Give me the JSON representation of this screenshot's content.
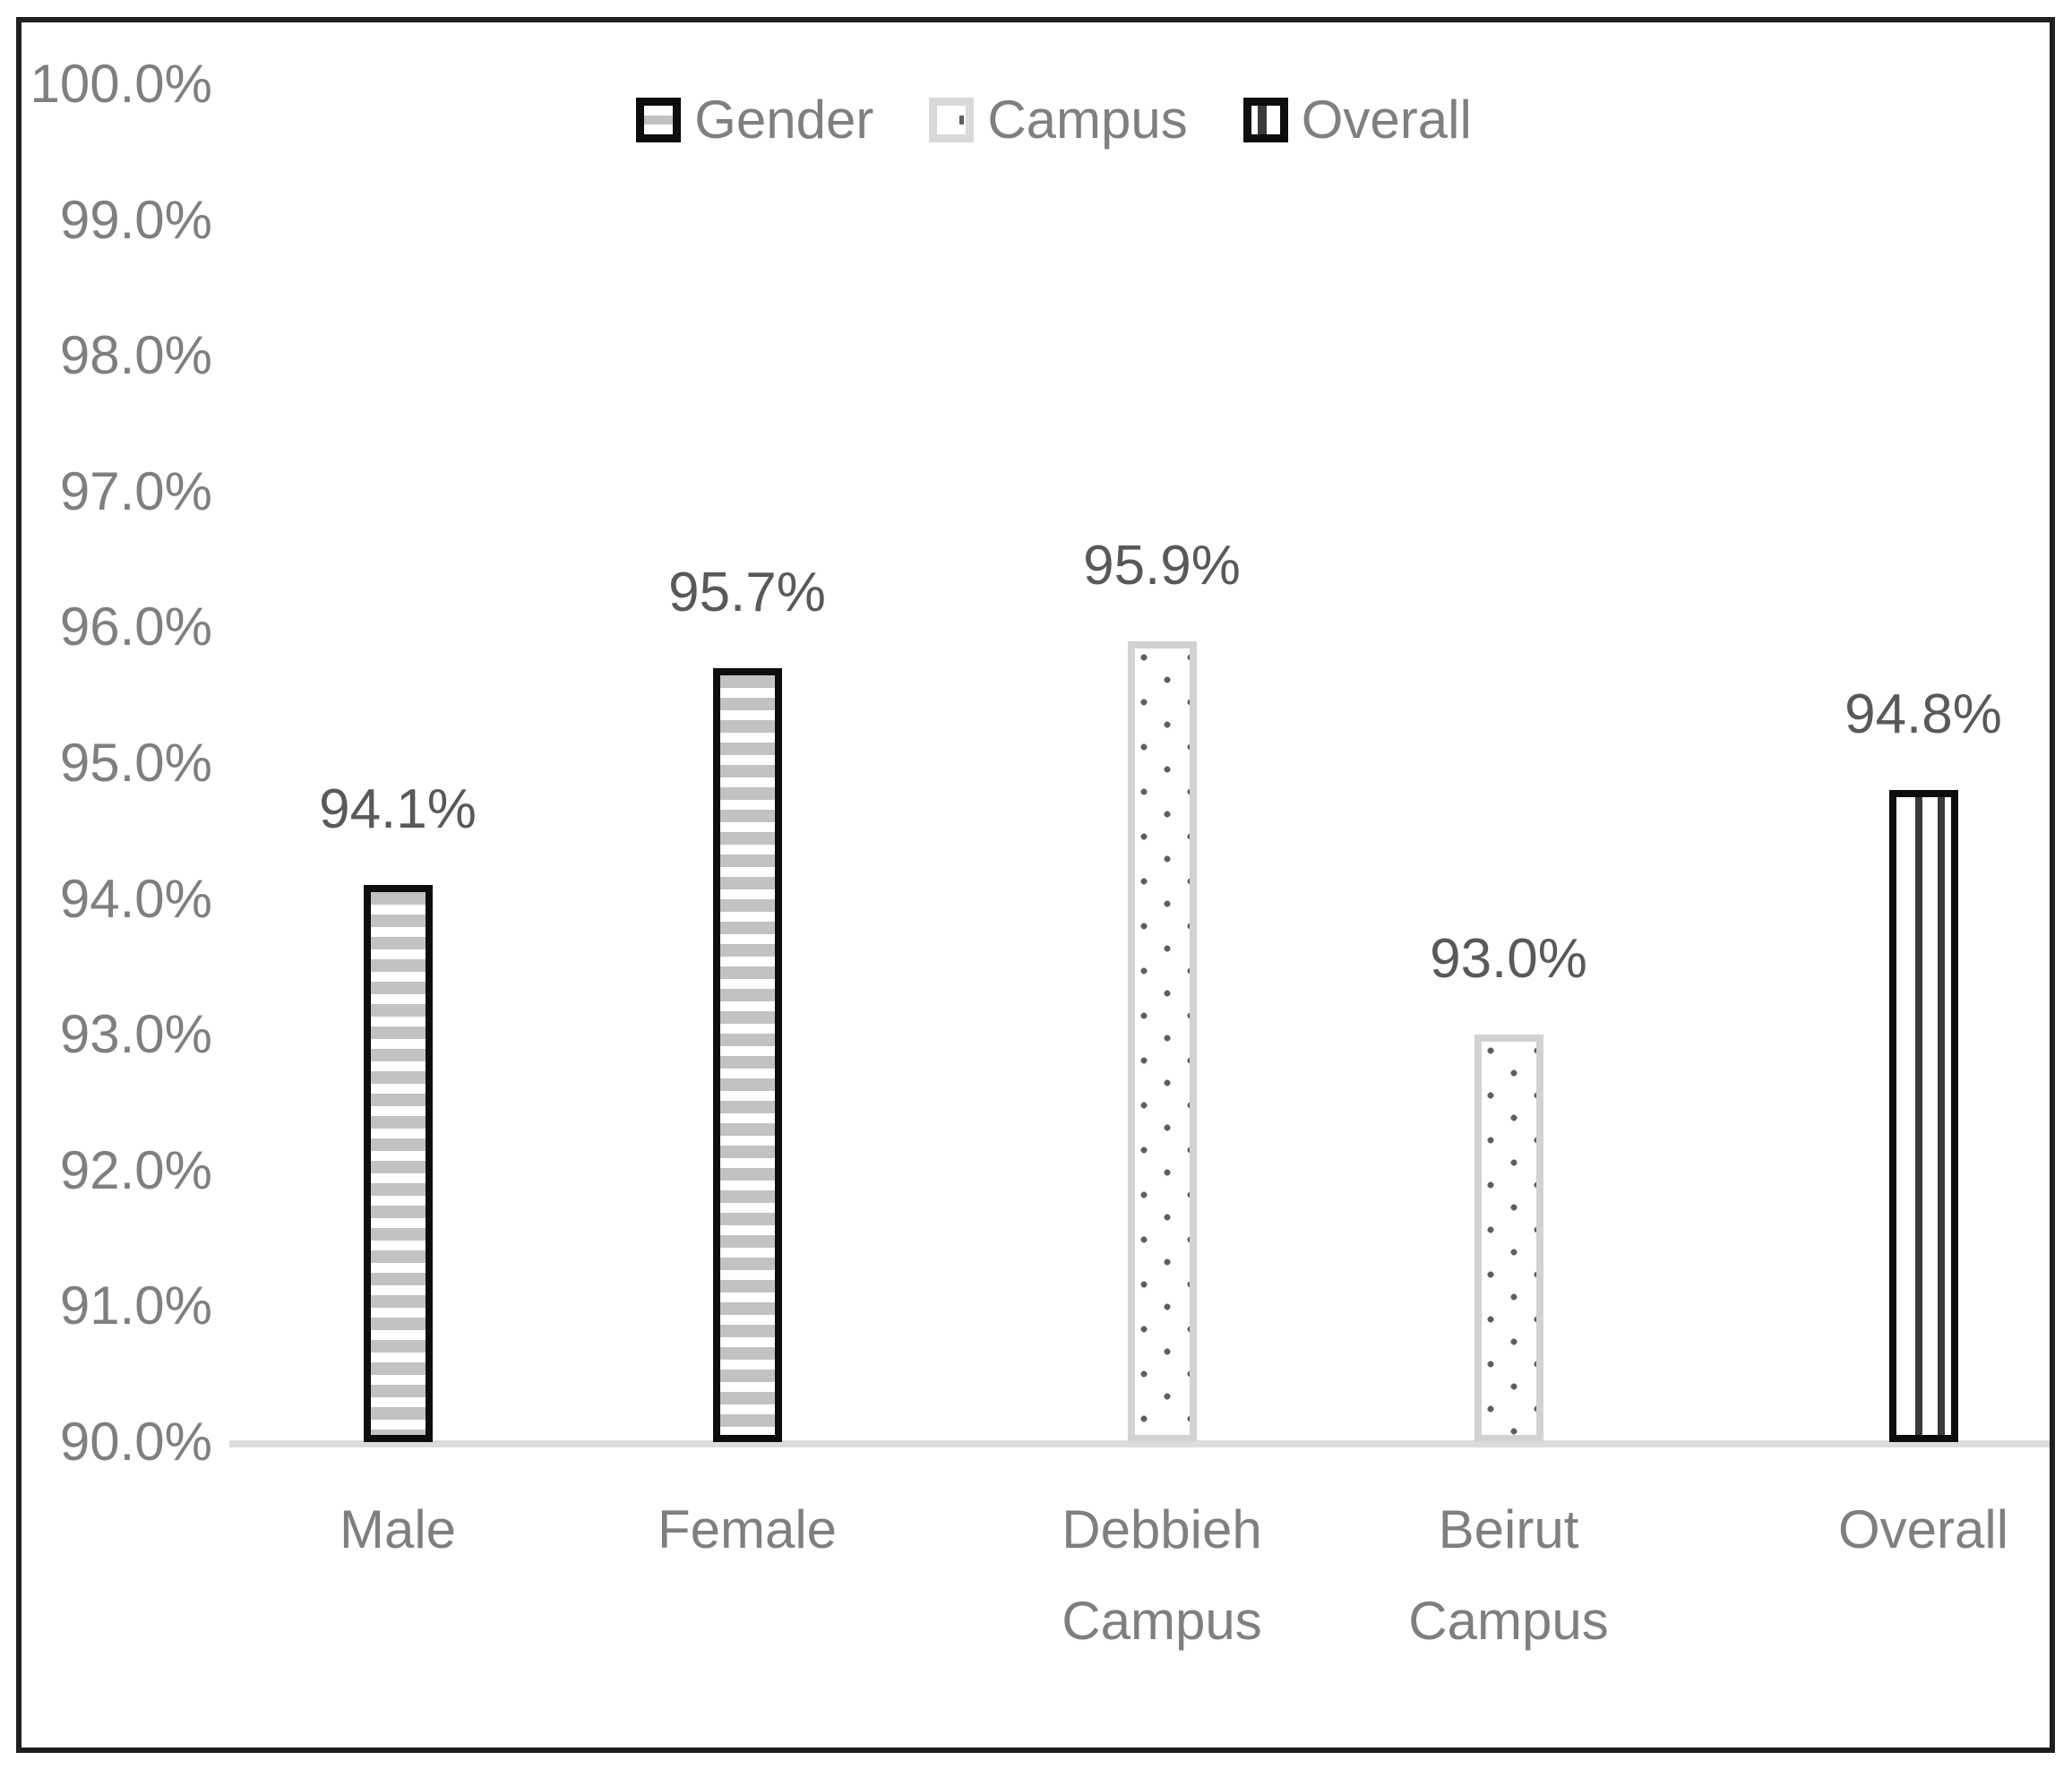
{
  "chart_data": {
    "type": "bar",
    "title": "",
    "categories": [
      "Male",
      "Female",
      "Debbieh Campus",
      "Beirut Campus",
      "Overall"
    ],
    "categories_display": [
      [
        "Male"
      ],
      [
        "Female"
      ],
      [
        "Debbieh",
        "Campus"
      ],
      [
        "Beirut",
        "Campus"
      ],
      [
        "Overall"
      ]
    ],
    "values": [
      94.1,
      95.7,
      95.9,
      93.0,
      94.8
    ],
    "value_labels": [
      "94.1%",
      "95.7%",
      "95.9%",
      "93.0%",
      "94.8%"
    ],
    "series_of_category": [
      "Gender",
      "Gender",
      "Campus",
      "Campus",
      "Overall"
    ],
    "legend": {
      "position": "top",
      "items": [
        {
          "label": "Gender",
          "pattern": "horizontal-stripes",
          "border_color": "#0d0d0d",
          "fill_color": "#c2c2c2"
        },
        {
          "label": "Campus",
          "pattern": "dots",
          "border_color": "#d9d9d9",
          "fill_color": "#5f5f5f"
        },
        {
          "label": "Overall",
          "pattern": "vertical-stripes",
          "border_color": "#0d0d0d",
          "fill_color": "#3a3a3a"
        }
      ]
    },
    "xlabel": "",
    "ylabel": "",
    "ylim": [
      90.0,
      100.0
    ],
    "y_tick_step": 1.0,
    "y_ticks": [
      {
        "value": 100,
        "label": "100.0%"
      },
      {
        "value": 99,
        "label": "99.0%"
      },
      {
        "value": 98,
        "label": "98.0%"
      },
      {
        "value": 97,
        "label": "97.0%"
      },
      {
        "value": 96,
        "label": "96.0%"
      },
      {
        "value": 95,
        "label": "95.0%"
      },
      {
        "value": 94,
        "label": "94.0%"
      },
      {
        "value": 93,
        "label": "93.0%"
      },
      {
        "value": 92,
        "label": "92.0%"
      },
      {
        "value": 91,
        "label": "91.0%"
      },
      {
        "value": 90,
        "label": "90.0%"
      }
    ],
    "grid": false,
    "colors": {
      "frame_border": "#1f1f1f",
      "axis_line": "#dcdcdc",
      "axis_tick_label": "#7f7f7f",
      "category_label": "#7f7f7f",
      "data_label": "#595959",
      "background": "#ffffff"
    }
  }
}
